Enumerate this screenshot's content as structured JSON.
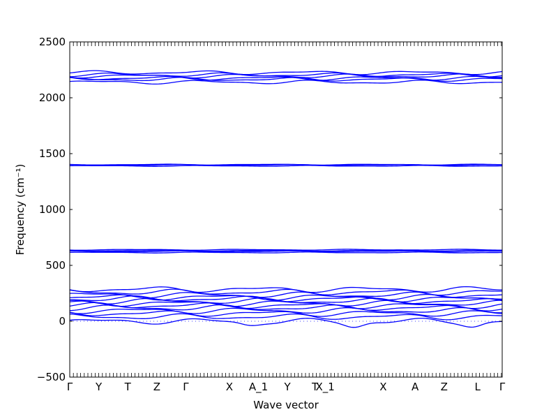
{
  "chart_data": {
    "type": "line",
    "title": "",
    "xlabel": "Wave vector",
    "ylabel": "Frequency (cm⁻¹)",
    "ylim": [
      -500,
      2500
    ],
    "yticks": [
      -500,
      0,
      500,
      1000,
      1500,
      2000,
      2500
    ],
    "ytick_labels": [
      "−500",
      "0",
      "500",
      "1000",
      "1500",
      "2000",
      "2500"
    ],
    "xlim": [
      0,
      14.9
    ],
    "xticks": [
      {
        "label": "Γ",
        "x": 0
      },
      {
        "label": "Y",
        "x": 1
      },
      {
        "label": "T",
        "x": 2
      },
      {
        "label": "Z",
        "x": 3
      },
      {
        "label": "Γ",
        "x": 4
      },
      {
        "label": "X",
        "x": 5.5
      },
      {
        "label": "A_1",
        "x": 6.5
      },
      {
        "label": "Y",
        "x": 7.5
      },
      {
        "label": "T",
        "x": 8.45
      },
      {
        "label": "X_1",
        "x": 8.8
      },
      {
        "label": "X",
        "x": 10.8
      },
      {
        "label": "A",
        "x": 11.9
      },
      {
        "label": "Z",
        "x": 12.9
      },
      {
        "label": "L",
        "x": 14.05
      },
      {
        "label": "Γ",
        "x": 14.9
      }
    ],
    "line_color": "#0000ff",
    "zero_line": {
      "style": "dotted",
      "color": "#0000ff"
    },
    "grid": false,
    "legend": "none",
    "band_groups": [
      {
        "name": "high",
        "values": [
          2140,
          2165,
          2175,
          2195,
          2205,
          2225
        ]
      },
      {
        "name": "c-c",
        "values": [
          1390,
          1398,
          1402
        ]
      },
      {
        "name": "mid",
        "values": [
          615,
          625,
          632,
          640
        ]
      },
      {
        "name": "low",
        "values": [
          0,
          40,
          70,
          95,
          120,
          140,
          160,
          180,
          200,
          215,
          235,
          260,
          285
        ]
      }
    ],
    "soft_mode_dips": [
      {
        "x": 6.2,
        "min": -30
      },
      {
        "x": 9.8,
        "min": -45
      },
      {
        "x": 13.9,
        "min": -40
      }
    ]
  }
}
